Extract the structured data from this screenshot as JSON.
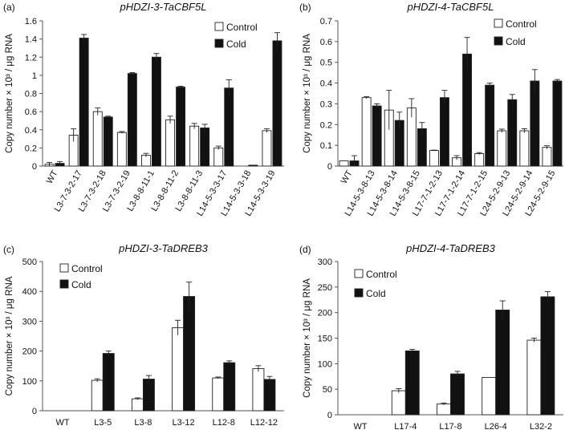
{
  "chart_data": [
    {
      "type": "bar",
      "panel_label": "(a)",
      "title": "pHDZI-3-TaCBF5L",
      "xlabel": "",
      "ylabel": "Copy number × 10³ / μg RNA",
      "ylim": [
        0,
        1.6
      ],
      "ytick_labels": [
        "0",
        "0.2",
        "0.4",
        "0.6",
        "0.8",
        "1",
        "1.2",
        "1.4",
        "1.6"
      ],
      "categories": [
        "WT",
        "L3-7-3-2-17",
        "L3-7-3-2-18",
        "L3-7-3-2-19",
        "L3-8-8-11-1",
        "L3-8-8-11-2",
        "L3-8-8-11-3",
        "L14-5-3-3-17",
        "L14-5-3-3-18",
        "L14-5-3-3-19"
      ],
      "series": [
        {
          "name": "Control",
          "color": "#ffffff",
          "values": [
            0.02,
            0.34,
            0.6,
            0.37,
            0.12,
            0.51,
            0.44,
            0.2,
            0.0,
            0.39
          ],
          "errors": [
            0.02,
            0.07,
            0.04,
            0.01,
            0.02,
            0.04,
            0.03,
            0.02,
            0.0,
            0.02
          ]
        },
        {
          "name": "Cold",
          "color": "#111111",
          "values": [
            0.03,
            1.41,
            0.54,
            1.02,
            1.2,
            0.87,
            0.42,
            0.86,
            0.01,
            1.38
          ],
          "errors": [
            0.02,
            0.04,
            0.01,
            0.01,
            0.04,
            0.01,
            0.04,
            0.09,
            0.0,
            0.09
          ]
        }
      ],
      "legend": "top-right"
    },
    {
      "type": "bar",
      "panel_label": "(b)",
      "title": "pHDZI-4-TaCBF5L",
      "xlabel": "",
      "ylabel": "Copy number × 10³ / μg RNA",
      "ylim": [
        0,
        0.7
      ],
      "ytick_labels": [
        "0",
        "0.1",
        "0.2",
        "0.3",
        "0.4",
        "0.5",
        "0.6",
        "0.7"
      ],
      "categories": [
        "WT",
        "L14-5-3-8-13",
        "L14-5-3-8-14",
        "L14-5-3-8-15",
        "L17-7-1-2-13",
        "L17-7-1-2-14",
        "L17-7-1-2-15",
        "L24-5-2-9-13",
        "L24-5-2-9-14",
        "L24-5-2-9-15"
      ],
      "series": [
        {
          "name": "Control",
          "color": "#ffffff",
          "values": [
            0.025,
            0.33,
            0.27,
            0.28,
            0.075,
            0.04,
            0.06,
            0.17,
            0.17,
            0.09
          ],
          "errors": [
            0.0,
            0.005,
            0.095,
            0.045,
            0.002,
            0.01,
            0.005,
            0.008,
            0.01,
            0.008
          ]
        },
        {
          "name": "Cold",
          "color": "#111111",
          "values": [
            0.025,
            0.29,
            0.22,
            0.18,
            0.33,
            0.54,
            0.39,
            0.32,
            0.41,
            0.41
          ],
          "errors": [
            0.025,
            0.01,
            0.04,
            0.03,
            0.035,
            0.08,
            0.01,
            0.025,
            0.055,
            0.007
          ]
        }
      ],
      "legend": "top-right"
    },
    {
      "type": "bar",
      "panel_label": "(c)",
      "title": "pHDZI-3-TaDREB3",
      "xlabel": "",
      "ylabel": "Copy number × 10³ / μg RNA",
      "ylim": [
        0,
        500
      ],
      "ytick_labels": [
        "0",
        "100",
        "200",
        "300",
        "400",
        "500"
      ],
      "categories": [
        "WT",
        "L3-5",
        "L3-8",
        "L3-12",
        "L12-8",
        "L12-12"
      ],
      "series": [
        {
          "name": "Control",
          "color": "#ffffff",
          "values": [
            0,
            102,
            40,
            278,
            110,
            141
          ],
          "errors": [
            0,
            5,
            3,
            25,
            3,
            10
          ]
        },
        {
          "name": "Cold",
          "color": "#111111",
          "values": [
            0,
            192,
            106,
            383,
            161,
            105
          ],
          "errors": [
            0,
            8,
            12,
            48,
            6,
            10
          ]
        }
      ],
      "legend": "top-left"
    },
    {
      "type": "bar",
      "panel_label": "(d)",
      "title": "pHDZI-4-TaDREB3",
      "xlabel": "",
      "ylabel": "Copy number × 10³ / μg RNA",
      "ylim": [
        0,
        300
      ],
      "ytick_labels": [
        "0",
        "50",
        "100",
        "150",
        "200",
        "250",
        "300"
      ],
      "categories": [
        "WT",
        "L17-4",
        "L17-8",
        "L26-4",
        "L32-2"
      ],
      "series": [
        {
          "name": "Control",
          "color": "#ffffff",
          "values": [
            0,
            47,
            21,
            73,
            146
          ],
          "errors": [
            0,
            4,
            2,
            0,
            4
          ]
        },
        {
          "name": "Cold",
          "color": "#111111",
          "values": [
            0,
            125,
            80,
            205,
            231
          ],
          "errors": [
            0,
            3,
            5,
            18,
            10
          ]
        }
      ],
      "legend": "top-left"
    }
  ]
}
